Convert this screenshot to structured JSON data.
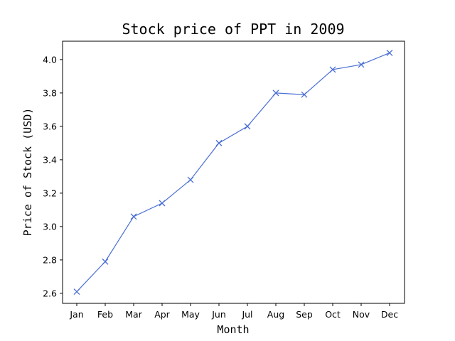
{
  "chart_data": {
    "type": "line",
    "title": "Stock price of PPT in 2009",
    "xlabel": "Month",
    "ylabel": "Price of Stock (USD)",
    "categories": [
      "Jan",
      "Feb",
      "Mar",
      "Apr",
      "May",
      "Jun",
      "Jul",
      "Aug",
      "Sep",
      "Oct",
      "Nov",
      "Dec"
    ],
    "series": [
      {
        "values": [
          2.61,
          2.79,
          3.06,
          3.14,
          3.28,
          3.5,
          3.6,
          3.8,
          3.79,
          3.94,
          3.97,
          4.04
        ],
        "color": "#4a6fd4",
        "marker": "x"
      }
    ],
    "yticks": [
      "2.6",
      "2.8",
      "3.0",
      "3.2",
      "3.4",
      "3.6",
      "3.8",
      "4.0"
    ],
    "ylim": [
      2.54,
      4.11
    ],
    "grid": false,
    "legend": false
  }
}
